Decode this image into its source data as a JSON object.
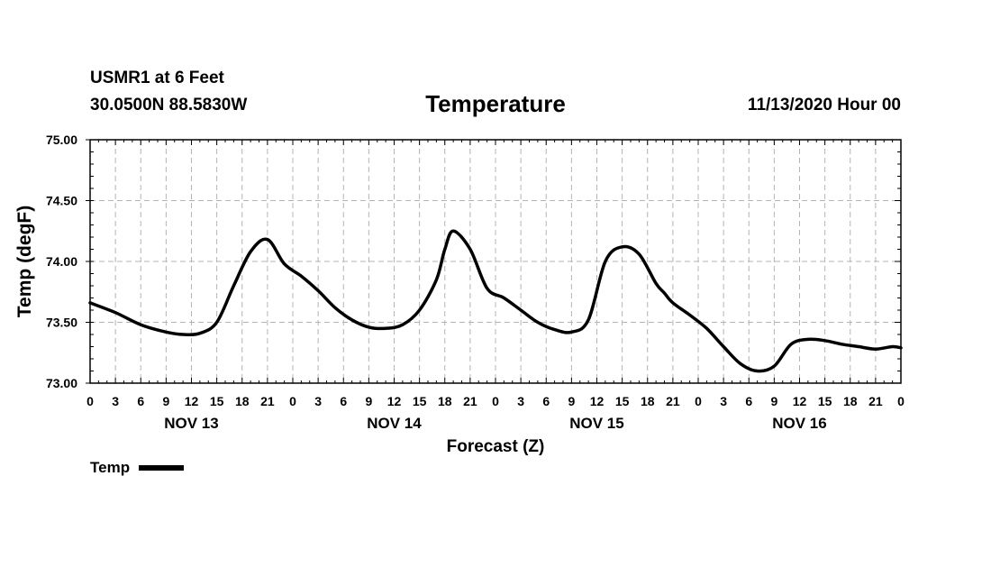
{
  "header": {
    "station": "USMR1 at 6 Feet",
    "coords": "30.0500N 88.5830W",
    "title": "Temperature",
    "datetime": "11/13/2020 Hour 00"
  },
  "legend": {
    "label": "Temp",
    "color": "#000000"
  },
  "chart_data": {
    "type": "line",
    "title": "Temperature",
    "xlabel": "Forecast (Z)",
    "ylabel": "Temp (degF)",
    "ylim": [
      73.0,
      75.0
    ],
    "y_ticks": [
      "73.00",
      "73.50",
      "74.00",
      "74.50",
      "75.00"
    ],
    "xlim_hours": [
      0,
      96
    ],
    "x_tick_labels": [
      "0",
      "3",
      "6",
      "9",
      "12",
      "15",
      "18",
      "21",
      "0",
      "3",
      "6",
      "9",
      "12",
      "15",
      "18",
      "21",
      "0",
      "3",
      "6",
      "9",
      "12",
      "15",
      "18",
      "21",
      "0",
      "3",
      "6",
      "9",
      "12",
      "15",
      "18",
      "21",
      "0"
    ],
    "day_labels": [
      {
        "label": "NOV 13",
        "hour": 12
      },
      {
        "label": "NOV 14",
        "hour": 36
      },
      {
        "label": "NOV 15",
        "hour": 60
      },
      {
        "label": "NOV 16",
        "hour": 84
      }
    ],
    "grid": true,
    "series": [
      {
        "name": "Temp",
        "hours": [
          0,
          3,
          6,
          9,
          11,
          13,
          15,
          17,
          19,
          21,
          23,
          25,
          27,
          29,
          31,
          33,
          35,
          37,
          39,
          41,
          42,
          43,
          45,
          47,
          49,
          51,
          53,
          55,
          57,
          59,
          61,
          63,
          65,
          67,
          68,
          69,
          71,
          73,
          75,
          77,
          79,
          81,
          83,
          85,
          87,
          89,
          91,
          93,
          95,
          96
        ],
        "values": [
          73.66,
          73.58,
          73.48,
          73.42,
          73.4,
          73.41,
          73.5,
          73.8,
          74.08,
          74.18,
          73.98,
          73.88,
          73.76,
          73.62,
          73.52,
          73.46,
          73.45,
          73.48,
          73.6,
          73.85,
          74.1,
          74.25,
          74.1,
          73.78,
          73.7,
          73.6,
          73.5,
          73.44,
          73.42,
          73.52,
          74.0,
          74.12,
          74.06,
          73.82,
          73.74,
          73.66,
          73.56,
          73.45,
          73.3,
          73.16,
          73.1,
          73.14,
          73.32,
          73.36,
          73.35,
          73.32,
          73.3,
          73.28,
          73.3,
          73.29
        ]
      }
    ]
  }
}
